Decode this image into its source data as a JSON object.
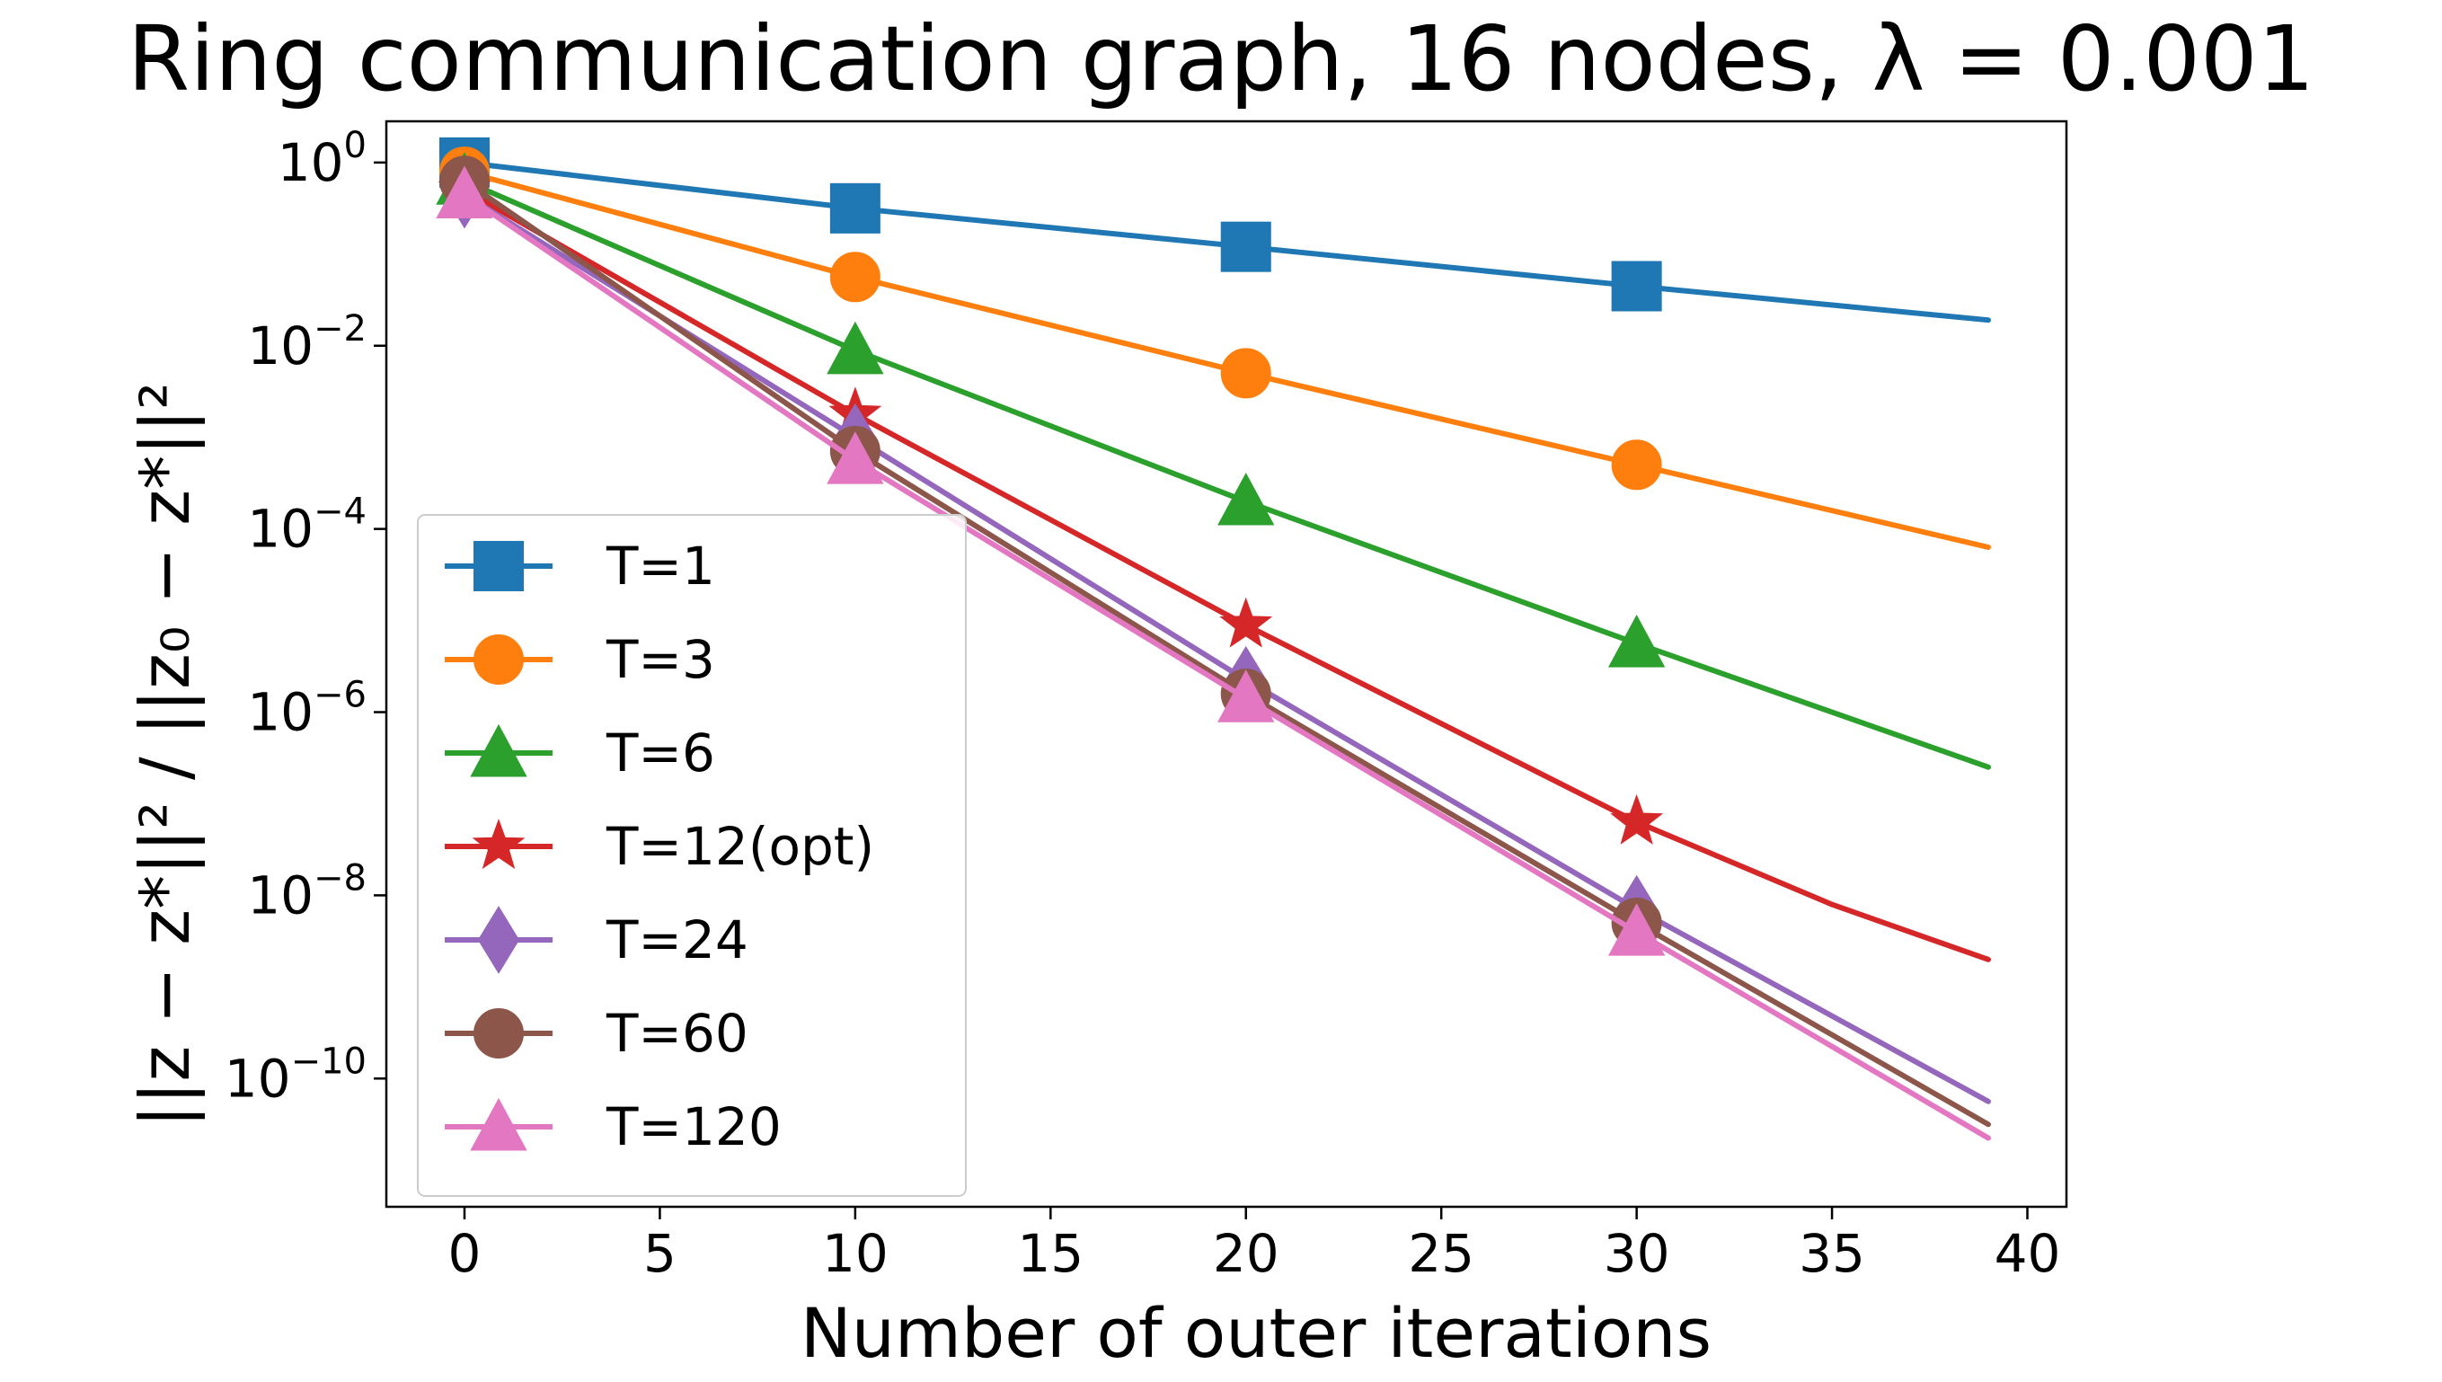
{
  "chart_data": {
    "type": "line",
    "title": "Ring communication graph, 16 nodes, λ = 0.001",
    "xlabel": "Number of outer iterations",
    "ylabel": "||z − z*||² / ||z₀ − z*||²",
    "xlim": [
      -2,
      41
    ],
    "xticks": [
      0,
      5,
      10,
      15,
      20,
      25,
      30,
      35,
      40
    ],
    "yscale": "log",
    "ylim_log10": [
      -11.4,
      0.45
    ],
    "yticks_log10": [
      0,
      -2,
      -4,
      -6,
      -8,
      -10
    ],
    "ytick_base": "10",
    "ytick_exponents": [
      "0",
      "−2",
      "−4",
      "−6",
      "−8",
      "−10"
    ],
    "legend_position": "lower left",
    "series": [
      {
        "name": "T=1",
        "color": "#1f77b4",
        "marker": "square",
        "x": [
          0,
          10,
          20,
          30,
          39
        ],
        "log10_y": [
          0.0,
          -0.5,
          -0.92,
          -1.35,
          -1.72
        ]
      },
      {
        "name": "T=3",
        "color": "#ff7f0e",
        "marker": "circle",
        "x": [
          0,
          10,
          20,
          30,
          39
        ],
        "log10_y": [
          -0.1,
          -1.25,
          -2.3,
          -3.3,
          -4.2
        ]
      },
      {
        "name": "T=6",
        "color": "#2ca02c",
        "marker": "triangle",
        "x": [
          0,
          10,
          20,
          30,
          39
        ],
        "log10_y": [
          -0.2,
          -2.05,
          -3.7,
          -5.25,
          -6.6
        ]
      },
      {
        "name": "T=12(opt)",
        "color": "#d62728",
        "marker": "star",
        "x": [
          0,
          10,
          20,
          30,
          35,
          39
        ],
        "log10_y": [
          -0.3,
          -2.75,
          -5.05,
          -7.2,
          -8.1,
          -8.7
        ]
      },
      {
        "name": "T=24",
        "color": "#9467bd",
        "marker": "diamond",
        "x": [
          0,
          10,
          20,
          30,
          39
        ],
        "log10_y": [
          -0.35,
          -3.0,
          -5.65,
          -8.15,
          -10.25
        ]
      },
      {
        "name": "T=60",
        "color": "#8c564b",
        "marker": "circle",
        "x": [
          0,
          10,
          20,
          30,
          39
        ],
        "log10_y": [
          -0.2,
          -3.15,
          -5.8,
          -8.3,
          -10.5
        ]
      },
      {
        "name": "T=120",
        "color": "#e377c2",
        "marker": "triangle",
        "x": [
          0,
          10,
          20,
          30,
          39
        ],
        "log10_y": [
          -0.35,
          -3.25,
          -5.85,
          -8.4,
          -10.65
        ]
      }
    ]
  }
}
